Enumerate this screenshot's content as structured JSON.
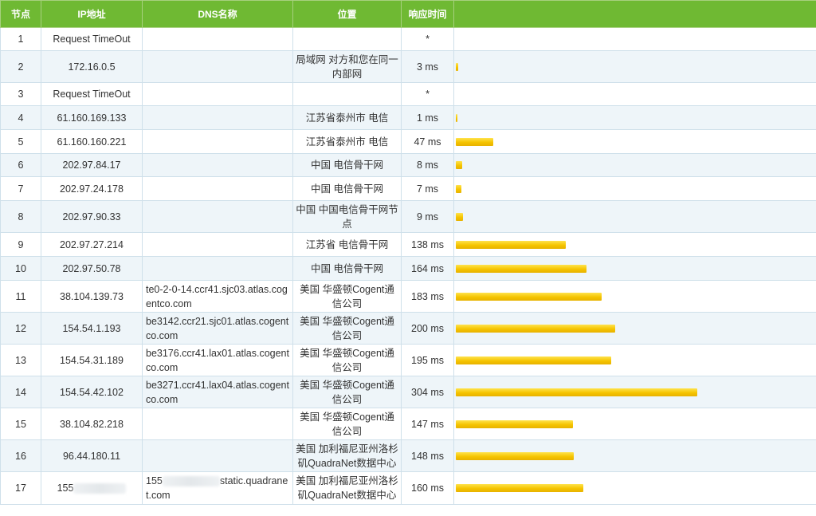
{
  "headers": {
    "node": "节点",
    "ip": "IP地址",
    "dns": "DNS名称",
    "location": "位置",
    "time": "响应时间",
    "bar": ""
  },
  "rows": [
    {
      "node": "1",
      "ip": "Request TimeOut",
      "dns": "",
      "location": "",
      "time": "*",
      "ms": 0
    },
    {
      "node": "2",
      "ip": "172.16.0.5",
      "dns": "",
      "location": "局域网 对方和您在同一内部网",
      "time": "3 ms",
      "ms": 3
    },
    {
      "node": "3",
      "ip": "Request TimeOut",
      "dns": "",
      "location": "",
      "time": "*",
      "ms": 0
    },
    {
      "node": "4",
      "ip": "61.160.169.133",
      "dns": "",
      "location": "江苏省泰州市 电信",
      "time": "1 ms",
      "ms": 1
    },
    {
      "node": "5",
      "ip": "61.160.160.221",
      "dns": "",
      "location": "江苏省泰州市 电信",
      "time": "47 ms",
      "ms": 47
    },
    {
      "node": "6",
      "ip": "202.97.84.17",
      "dns": "",
      "location": "中国 电信骨干网",
      "time": "8 ms",
      "ms": 8
    },
    {
      "node": "7",
      "ip": "202.97.24.178",
      "dns": "",
      "location": "中国 电信骨干网",
      "time": "7 ms",
      "ms": 7
    },
    {
      "node": "8",
      "ip": "202.97.90.33",
      "dns": "",
      "location": "中国 中国电信骨干网节点",
      "time": "9 ms",
      "ms": 9
    },
    {
      "node": "9",
      "ip": "202.97.27.214",
      "dns": "",
      "location": "江苏省 电信骨干网",
      "time": "138 ms",
      "ms": 138
    },
    {
      "node": "10",
      "ip": "202.97.50.78",
      "dns": "",
      "location": "中国 电信骨干网",
      "time": "164 ms",
      "ms": 164
    },
    {
      "node": "11",
      "ip": "38.104.139.73",
      "dns": "te0-2-0-14.ccr41.sjc03.atlas.cogentco.com",
      "location": "美国 华盛顿Cogent通信公司",
      "time": "183 ms",
      "ms": 183
    },
    {
      "node": "12",
      "ip": "154.54.1.193",
      "dns": "be3142.ccr21.sjc01.atlas.cogentco.com",
      "location": "美国 华盛顿Cogent通信公司",
      "time": "200 ms",
      "ms": 200
    },
    {
      "node": "13",
      "ip": "154.54.31.189",
      "dns": "be3176.ccr41.lax01.atlas.cogentco.com",
      "location": "美国 华盛顿Cogent通信公司",
      "time": "195 ms",
      "ms": 195
    },
    {
      "node": "14",
      "ip": "154.54.42.102",
      "dns": "be3271.ccr41.lax04.atlas.cogentco.com",
      "location": "美国 华盛顿Cogent通信公司",
      "time": "304 ms",
      "ms": 304
    },
    {
      "node": "15",
      "ip": "38.104.82.218",
      "dns": "",
      "location": "美国 华盛顿Cogent通信公司",
      "time": "147 ms",
      "ms": 147
    },
    {
      "node": "16",
      "ip": "96.44.180.11",
      "dns": "",
      "location": "美国 加利福尼亚州洛杉矶QuadraNet数据中心",
      "time": "148 ms",
      "ms": 148
    },
    {
      "node": "17",
      "ip": "155",
      "dns_prefix": "155",
      "dns": "static.quadranet.com",
      "location": "美国 加利福尼亚州洛杉矶QuadraNet数据中心",
      "time": "160 ms",
      "ms": 160,
      "redacted": true
    }
  ],
  "bar_color": "#f5c400",
  "header_color": "#6fb933"
}
